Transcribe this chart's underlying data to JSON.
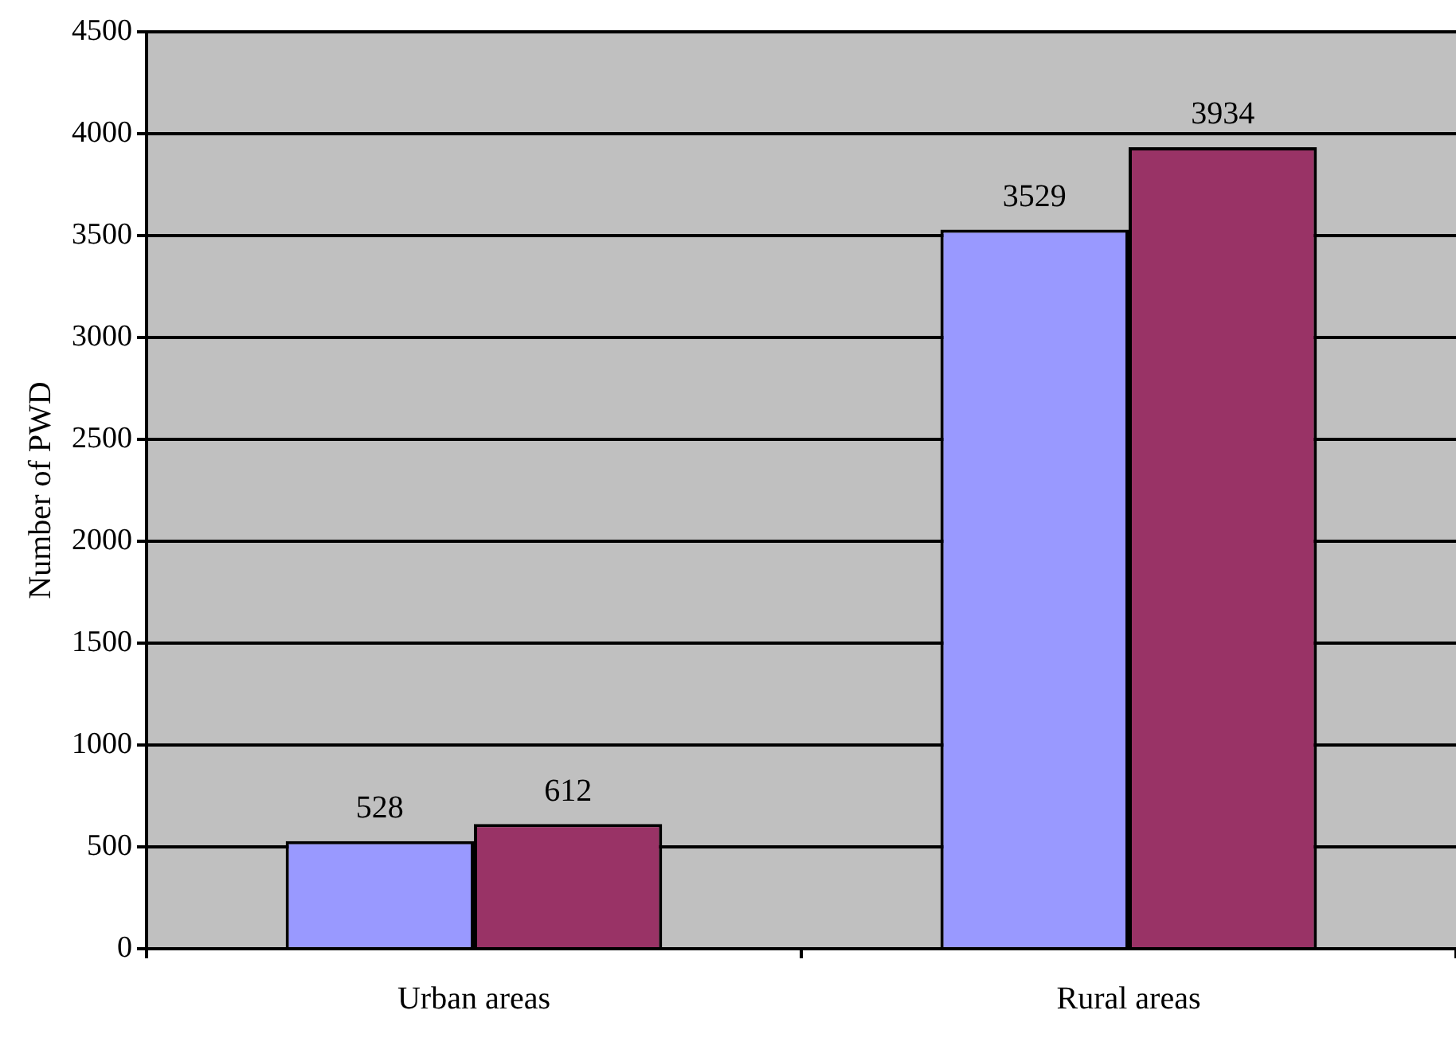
{
  "chart_data": {
    "type": "bar",
    "ylabel": "Number of PWD",
    "categories": [
      "Urban areas",
      "Rural areas"
    ],
    "series": [
      {
        "color": "#9999ff",
        "values": [
          528,
          3529
        ]
      },
      {
        "color": "#993366",
        "values": [
          612,
          3934
        ]
      }
    ],
    "ylim": [
      0,
      4500
    ],
    "yticks": [
      0,
      500,
      1000,
      1500,
      2000,
      2500,
      3000,
      3500,
      4000,
      4500
    ],
    "grid": "y",
    "legend": false,
    "data_labels": true
  }
}
